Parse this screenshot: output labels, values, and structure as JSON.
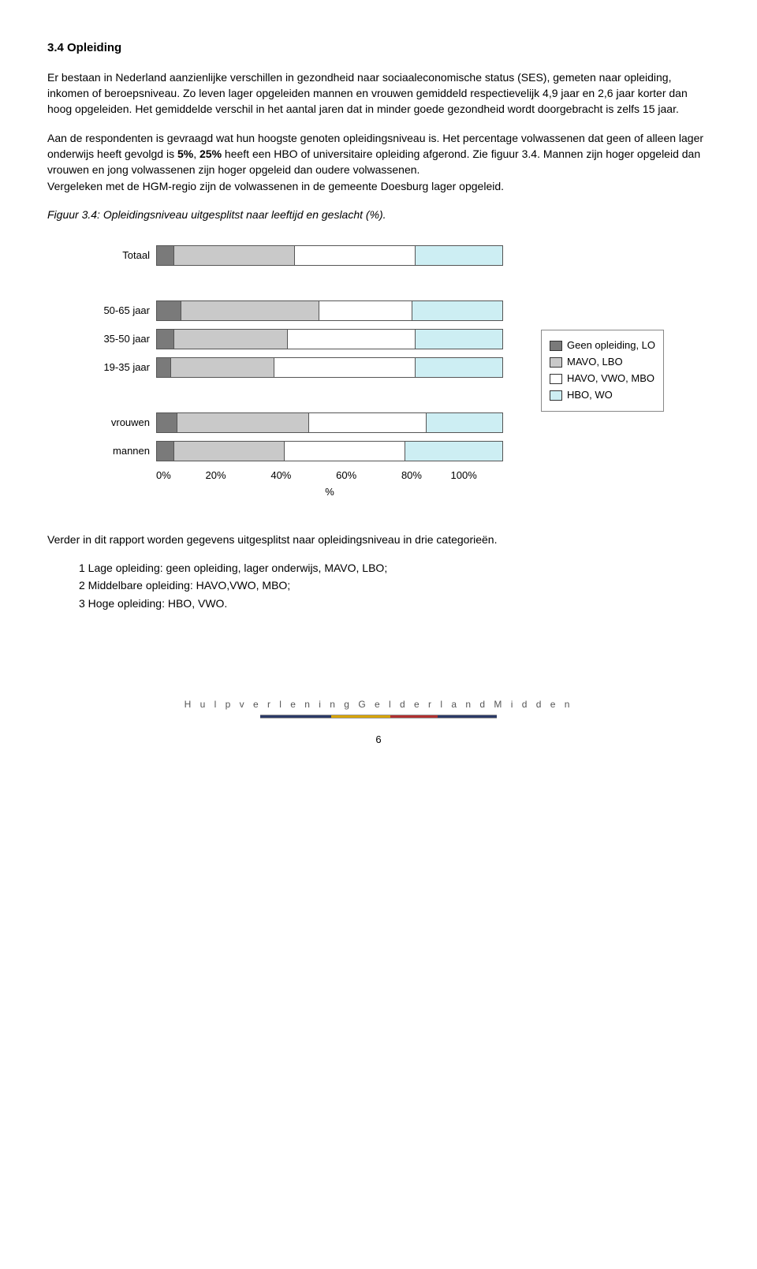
{
  "section": {
    "title": "3.4 Opleiding"
  },
  "para1": "Er bestaan in Nederland aanzienlijke verschillen in gezondheid naar sociaaleconomische status (SES), gemeten naar opleiding, inkomen of beroepsniveau. Zo leven lager opgeleiden mannen en vrouwen gemiddeld respectievelijk 4,9 jaar en 2,6 jaar korter dan hoog opgeleiden. Het gemiddelde verschil in het aantal jaren dat in minder goede gezondheid wordt doorgebracht is zelfs 15 jaar.",
  "para2_a": "Aan de respondenten is gevraagd wat hun hoogste genoten opleidingsniveau is. Het percentage volwassenen dat geen of alleen lager onderwijs heeft gevolgd is ",
  "para2_b1": "5%",
  "para2_c": ", ",
  "para2_b2": "25%",
  "para2_d": " heeft een HBO of universitaire opleiding afgerond. Zie figuur 3.4. Mannen zijn hoger opgeleid dan vrouwen en jong volwassenen zijn hoger opgeleid dan oudere volwassenen.",
  "para3": "Vergeleken met de HGM-regio zijn de volwassenen in de gemeente Doesburg lager opgeleid.",
  "caption": "Figuur 3.4: Opleidingsniveau uitgesplitst naar leeftijd en geslacht (%).",
  "chart": {
    "type": "stacked-horizontal-bar",
    "colors": {
      "seg0": "#7a7a7a",
      "seg1": "#c9c9c9",
      "seg2": "#ffffff",
      "seg3": "#cdeef3",
      "grid": "#cccccc",
      "border": "#555555"
    },
    "legend": [
      {
        "label": "Geen opleiding, LO",
        "colorKey": "seg0"
      },
      {
        "label": "MAVO, LBO",
        "colorKey": "seg1"
      },
      {
        "label": "HAVO, VWO, MBO",
        "colorKey": "seg2"
      },
      {
        "label": "HBO, WO",
        "colorKey": "seg3"
      }
    ],
    "xlim": [
      0,
      100
    ],
    "xtick_step": 20,
    "xticks": [
      "0%",
      "20%",
      "40%",
      "60%",
      "80%",
      "100%"
    ],
    "xlabel": "%",
    "groups": [
      {
        "label": "Totaal",
        "values": [
          5,
          35,
          35,
          25
        ]
      },
      {
        "spacer": true
      },
      {
        "label": "50-65 jaar",
        "values": [
          7,
          40,
          27,
          26
        ]
      },
      {
        "label": "35-50 jaar",
        "values": [
          5,
          33,
          37,
          25
        ]
      },
      {
        "label": "19-35 jaar",
        "values": [
          4,
          30,
          41,
          25
        ]
      },
      {
        "spacer": true
      },
      {
        "label": "vrouwen",
        "values": [
          6,
          38,
          34,
          22
        ]
      },
      {
        "label": "mannen",
        "values": [
          5,
          32,
          35,
          28
        ]
      }
    ]
  },
  "outro": "Verder in dit rapport worden gegevens uitgesplitst naar opleidingsniveau in drie categorieën.",
  "cats": [
    "1 Lage opleiding: geen opleiding, lager onderwijs, MAVO, LBO;",
    "2 Middelbare opleiding: HAVO,VWO, MBO;",
    "3 Hoge opleiding: HBO, VWO."
  ],
  "footer": {
    "brand": "H u l p v e r l e n i n g   G e l d e r l a n d   M i d d e n",
    "page": "6"
  }
}
